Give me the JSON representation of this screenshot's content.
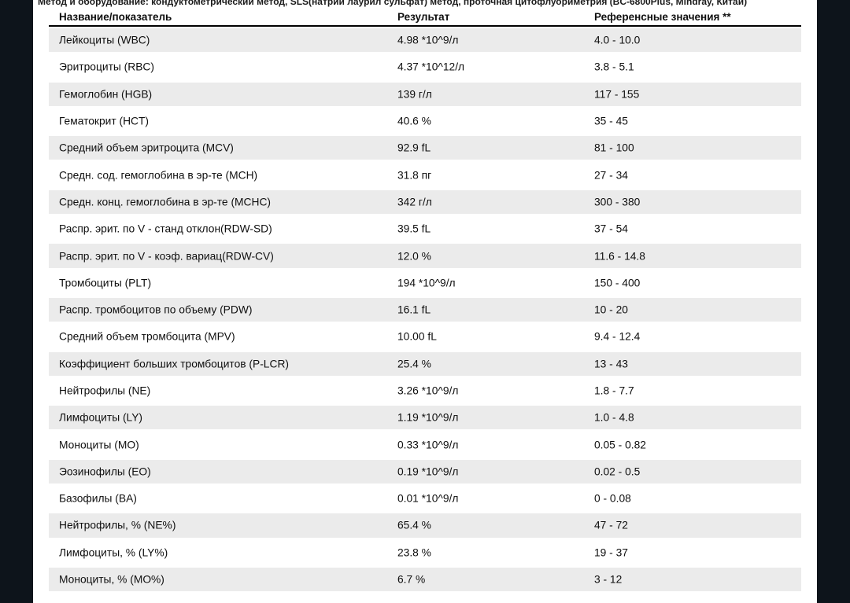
{
  "document": {
    "method_line": "Метод и оборудование: кондуктометрический метод, SLS(натрий лаурил сульфат) метод, проточная цитофлуориметрия (BC-6800Plus, Mindray, Китай)",
    "table": {
      "columns": [
        "Название/показатель",
        "Результат",
        "Референсные значения **"
      ],
      "rows": [
        {
          "name": "Лейкоциты (WBC)",
          "result": "4.98 *10^9/л",
          "reference": "4.0 - 10.0"
        },
        {
          "name": "Эритроциты (RBC)",
          "result": "4.37 *10^12/л",
          "reference": "3.8 - 5.1"
        },
        {
          "name": "Гемоглобин (HGB)",
          "result": "139 г/л",
          "reference": "117 - 155"
        },
        {
          "name": "Гематокрит (HCT)",
          "result": "40.6 %",
          "reference": "35 - 45"
        },
        {
          "name": "Средний объем эритроцита (MCV)",
          "result": "92.9 fL",
          "reference": "81 - 100"
        },
        {
          "name": "Средн. сод. гемоглобина в эр-те (MCH)",
          "result": "31.8 пг",
          "reference": "27 - 34"
        },
        {
          "name": "Средн. конц. гемоглобина в эр-те (MCHC)",
          "result": "342 г/л",
          "reference": "300 - 380"
        },
        {
          "name": "Распр. эрит. по V - станд отклон(RDW-SD)",
          "result": "39.5 fL",
          "reference": "37 - 54"
        },
        {
          "name": "Распр. эрит. по V - коэф. вариац(RDW-CV)",
          "result": "12.0 %",
          "reference": "11.6 - 14.8"
        },
        {
          "name": "Тромбоциты (PLT)",
          "result": "194 *10^9/л",
          "reference": "150 - 400"
        },
        {
          "name": "Распр. тромбоцитов по объему (PDW)",
          "result": "16.1 fL",
          "reference": "10 - 20"
        },
        {
          "name": "Средний объем тромбоцита (MPV)",
          "result": "10.00 fL",
          "reference": "9.4 - 12.4"
        },
        {
          "name": "Коэффициент больших тромбоцитов (P-LCR)",
          "result": "25.4 %",
          "reference": "13 - 43"
        },
        {
          "name": "Нейтрофилы (NE)",
          "result": "3.26 *10^9/л",
          "reference": "1.8 - 7.7"
        },
        {
          "name": "Лимфоциты (LY)",
          "result": "1.19 *10^9/л",
          "reference": "1.0 - 4.8"
        },
        {
          "name": "Моноциты (MO)",
          "result": "0.33 *10^9/л",
          "reference": "0.05 - 0.82"
        },
        {
          "name": "Эозинофилы (EO)",
          "result": "0.19 *10^9/л",
          "reference": "0.02 - 0.5"
        },
        {
          "name": "Базофилы (BA)",
          "result": "0.01 *10^9/л",
          "reference": "0 - 0.08"
        },
        {
          "name": "Нейтрофилы, % (NE%)",
          "result": "65.4 %",
          "reference": "47 - 72"
        },
        {
          "name": "Лимфоциты, % (LY%)",
          "result": "23.8 %",
          "reference": "19 - 37"
        },
        {
          "name": "Моноциты, % (MO%)",
          "result": "6.7 %",
          "reference": "3 - 12"
        }
      ]
    },
    "colors": {
      "viewer_background": "#0d141b",
      "page_background": "#ffffff",
      "row_stripe": "#ebebeb",
      "text": "#0f0f0f",
      "header_rule": "#000000"
    }
  }
}
